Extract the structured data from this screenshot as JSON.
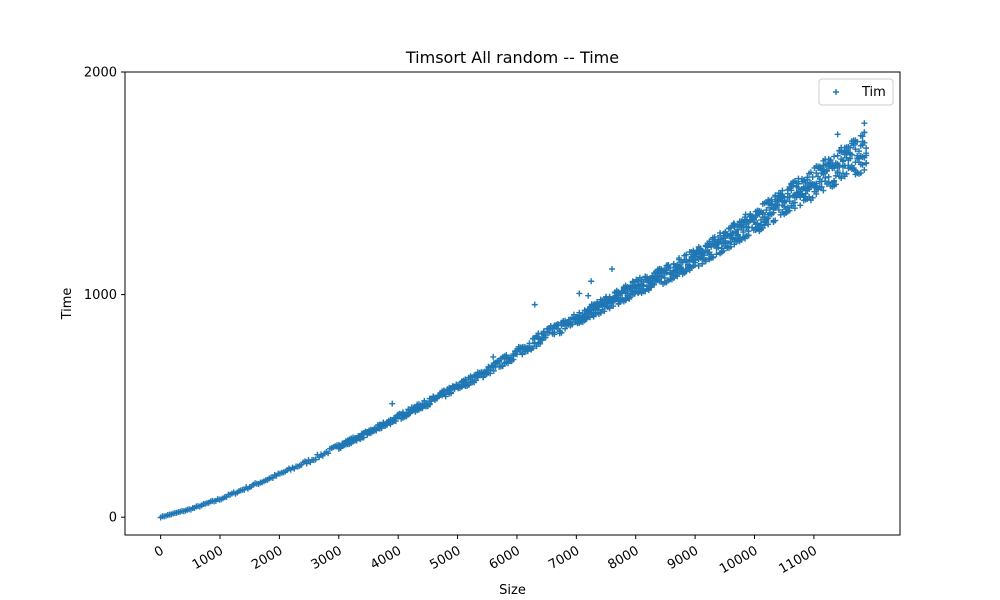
{
  "chart_data": {
    "type": "scatter",
    "title": "Timsort All random -- Time",
    "xlabel": "Size",
    "ylabel": "Time",
    "xlim": [
      -600,
      12450
    ],
    "ylim": [
      -80,
      2000
    ],
    "xticks": [
      0,
      1000,
      2000,
      3000,
      4000,
      5000,
      6000,
      7000,
      8000,
      9000,
      10000,
      11000
    ],
    "xtick_labels": [
      "0",
      "1000",
      "2000",
      "3000",
      "4000",
      "5000",
      "6000",
      "7000",
      "8000",
      "9000",
      "10000",
      "11000"
    ],
    "yticks": [
      0,
      1000,
      2000
    ],
    "ytick_labels": [
      "0",
      "1000",
      "2000"
    ],
    "grid": false,
    "legend_position": "upper-right",
    "marker": "+",
    "color": "#1f77b4",
    "series": [
      {
        "name": "Tim",
        "trend": {
          "x": [
            0,
            500,
            1000,
            1500,
            2000,
            2500,
            3000,
            3500,
            4000,
            4500,
            5000,
            5500,
            6000,
            6500,
            7000,
            7500,
            8000,
            8500,
            9000,
            9500,
            10000,
            10500,
            11000,
            11500,
            11900
          ],
          "y": [
            0,
            35,
            80,
            135,
            190,
            250,
            315,
            375,
            445,
            510,
            580,
            650,
            730,
            815,
            880,
            950,
            1020,
            1080,
            1150,
            1230,
            1310,
            1400,
            1480,
            1570,
            1620
          ],
          "spread": [
            2,
            3,
            5,
            6,
            8,
            9,
            11,
            12,
            14,
            16,
            18,
            20,
            24,
            28,
            30,
            32,
            36,
            40,
            44,
            48,
            55,
            62,
            70,
            80,
            90
          ],
          "step": 30
        },
        "outliers": [
          {
            "x": 3900,
            "y": 510
          },
          {
            "x": 5600,
            "y": 720
          },
          {
            "x": 6300,
            "y": 955
          },
          {
            "x": 7050,
            "y": 1005
          },
          {
            "x": 7250,
            "y": 1060
          },
          {
            "x": 7600,
            "y": 1115
          },
          {
            "x": 7200,
            "y": 995
          },
          {
            "x": 9650,
            "y": 1320
          },
          {
            "x": 9850,
            "y": 1360
          },
          {
            "x": 11400,
            "y": 1720
          },
          {
            "x": 11850,
            "y": 1770
          }
        ]
      }
    ]
  }
}
